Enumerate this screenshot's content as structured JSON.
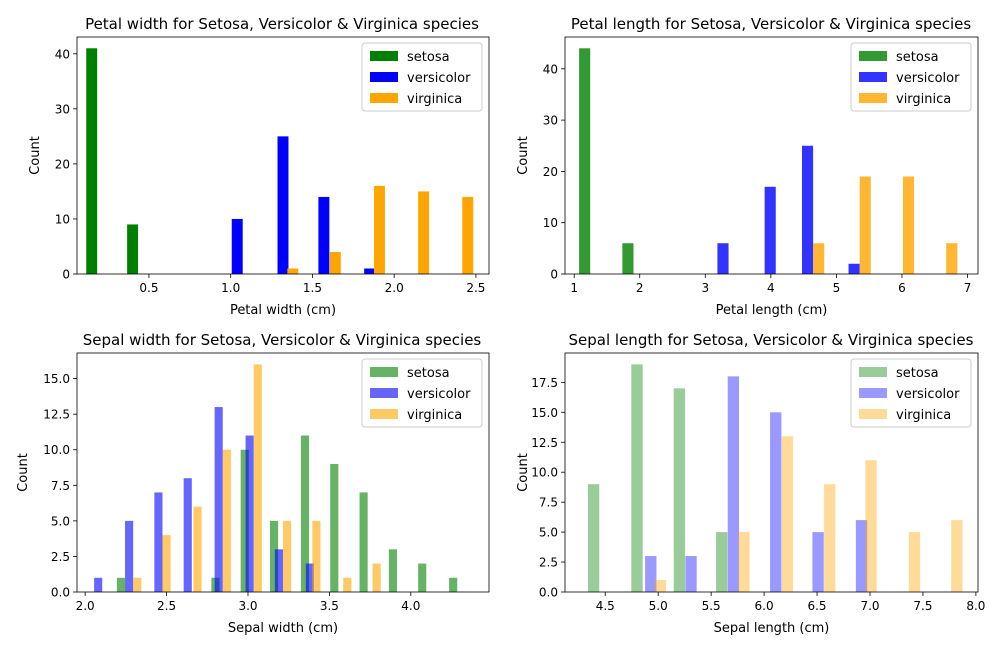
{
  "colors": {
    "setosa": "#008000",
    "versicolor": "#0000ff",
    "virginica": "#ffa500"
  },
  "chart_data": [
    {
      "type": "bar",
      "title": "Petal width for Setosa, Versicolor & Virginica species",
      "xlabel": "Petal width (cm)",
      "ylabel": "Count",
      "xlim": [
        0.06,
        2.58
      ],
      "ylim": [
        0,
        43.05
      ],
      "xticks": [
        0.5,
        1.0,
        1.5,
        2.0,
        2.5
      ],
      "xtick_labels": [
        "0.5",
        "1.0",
        "1.5",
        "2.0",
        "2.5"
      ],
      "yticks": [
        0,
        10,
        20,
        30,
        40
      ],
      "ytick_labels": [
        "0",
        "10",
        "20",
        "30",
        "40"
      ],
      "bar_width": 0.067,
      "opacity": 1.0,
      "legend_loc": "upper-right",
      "grid": false,
      "series": [
        {
          "name": "setosa",
          "color": "#008000",
          "x": [
            0.15,
            0.4
          ],
          "values": [
            41,
            9
          ]
        },
        {
          "name": "versicolor",
          "color": "#0000ff",
          "x": [
            1.04,
            1.32,
            1.57,
            1.85
          ],
          "values": [
            10,
            25,
            14,
            1
          ]
        },
        {
          "name": "virginica",
          "color": "#ffa500",
          "x": [
            1.38,
            1.64,
            1.91,
            2.18,
            2.45
          ],
          "values": [
            1,
            4,
            16,
            15,
            14
          ]
        }
      ]
    },
    {
      "type": "bar",
      "title": "Petal length for Setosa, Versicolor & Virginica species",
      "xlabel": "Petal length (cm)",
      "ylabel": "Count",
      "xlim": [
        0.86,
        7.16
      ],
      "ylim": [
        0,
        46.2
      ],
      "xticks": [
        1,
        2,
        3,
        4,
        5,
        6,
        7
      ],
      "xtick_labels": [
        "1",
        "2",
        "3",
        "4",
        "5",
        "6",
        "7"
      ],
      "yticks": [
        0,
        10,
        20,
        30,
        40
      ],
      "ytick_labels": [
        "0",
        "10",
        "20",
        "30",
        "40"
      ],
      "bar_width": 0.17,
      "opacity": 0.8,
      "legend_loc": "upper-right",
      "grid": false,
      "series": [
        {
          "name": "setosa",
          "color": "#008000",
          "x": [
            1.16,
            1.82
          ],
          "values": [
            44,
            6
          ]
        },
        {
          "name": "versicolor",
          "color": "#0000ff",
          "x": [
            3.27,
            3.99,
            4.56,
            5.27
          ],
          "values": [
            6,
            17,
            25,
            2
          ]
        },
        {
          "name": "virginica",
          "color": "#ffa500",
          "x": [
            4.73,
            5.44,
            6.1,
            6.76
          ],
          "values": [
            6,
            19,
            19,
            6
          ]
        }
      ]
    },
    {
      "type": "bar",
      "title": "Sepal width for Setosa, Versicolor & Virginica species",
      "xlabel": "Sepal width (cm)",
      "ylabel": "Count",
      "xlim": [
        1.95,
        4.48
      ],
      "ylim": [
        0,
        16.8
      ],
      "xticks": [
        2.0,
        2.5,
        3.0,
        3.5,
        4.0
      ],
      "xtick_labels": [
        "2.0",
        "2.5",
        "3.0",
        "3.5",
        "4.0"
      ],
      "yticks": [
        0,
        2.5,
        5.0,
        7.5,
        10.0,
        12.5,
        15.0
      ],
      "ytick_labels": [
        "0.0",
        "2.5",
        "5.0",
        "7.5",
        "10.0",
        "12.5",
        "15.0"
      ],
      "bar_width": 0.05,
      "opacity": 0.6,
      "legend_loc": "upper-right",
      "grid": false,
      "series": [
        {
          "name": "setosa",
          "color": "#008000",
          "x": [
            2.22,
            2.8,
            2.98,
            3.16,
            3.35,
            3.53,
            3.71,
            3.89,
            4.07,
            4.26
          ],
          "values": [
            1,
            1,
            10,
            5,
            11,
            9,
            7,
            3,
            2,
            1
          ]
        },
        {
          "name": "versicolor",
          "color": "#0000ff",
          "x": [
            2.08,
            2.27,
            2.45,
            2.63,
            2.82,
            3.01,
            3.19,
            3.38
          ],
          "values": [
            1,
            5,
            7,
            8,
            13,
            11,
            3,
            2
          ]
        },
        {
          "name": "virginica",
          "color": "#ffa500",
          "x": [
            2.32,
            2.5,
            2.69,
            2.87,
            3.06,
            3.24,
            3.42,
            3.61,
            3.79
          ],
          "values": [
            1,
            4,
            6,
            10,
            16,
            5,
            5,
            1,
            2
          ]
        }
      ]
    },
    {
      "type": "bar",
      "title": "Sepal length for Setosa, Versicolor & Virginica species",
      "xlabel": "Sepal length (cm)",
      "ylabel": "Count",
      "xlim": [
        4.12,
        8.02
      ],
      "ylim": [
        0,
        19.95
      ],
      "xticks": [
        4.5,
        5.0,
        5.5,
        6.0,
        6.5,
        7.0,
        7.5,
        8.0
      ],
      "xtick_labels": [
        "4.5",
        "5.0",
        "5.5",
        "6.0",
        "6.5",
        "7.0",
        "7.5",
        "8.0"
      ],
      "yticks": [
        0,
        2.5,
        5.0,
        7.5,
        10.0,
        12.5,
        15.0,
        17.5
      ],
      "ytick_labels": [
        "0.0",
        "2.5",
        "5.0",
        "7.5",
        "10.0",
        "12.5",
        "15.0",
        "17.5"
      ],
      "bar_width": 0.107,
      "opacity": 0.4,
      "legend_loc": "upper-right",
      "grid": false,
      "series": [
        {
          "name": "setosa",
          "color": "#008000",
          "x": [
            4.39,
            4.8,
            5.2,
            5.6
          ],
          "values": [
            9,
            19,
            17,
            5
          ]
        },
        {
          "name": "versicolor",
          "color": "#0000ff",
          "x": [
            4.93,
            5.31,
            5.71,
            6.11,
            6.51,
            6.92
          ],
          "values": [
            3,
            3,
            18,
            15,
            5,
            6
          ]
        },
        {
          "name": "virginica",
          "color": "#ffa500",
          "x": [
            5.02,
            5.81,
            6.22,
            6.62,
            7.01,
            7.42,
            7.82
          ],
          "values": [
            1,
            5,
            13,
            9,
            11,
            5,
            6
          ]
        }
      ]
    }
  ]
}
